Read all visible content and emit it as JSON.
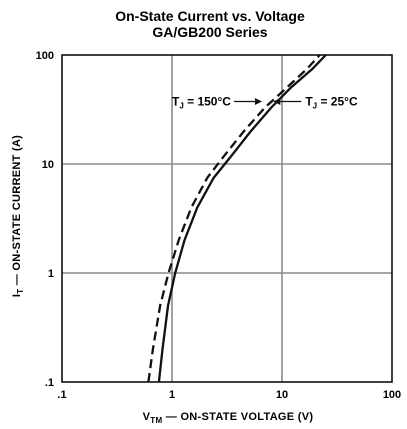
{
  "chart_data": {
    "type": "line",
    "title": "On-State Current vs. Voltage",
    "subtitle": "GA/GB200 Series",
    "xlabel": "V_TM — ON-STATE VOLTAGE (V)",
    "ylabel": "I_T — ON-STATE CURRENT (A)",
    "x_scale": "log",
    "y_scale": "log",
    "xlim": [
      0.1,
      100
    ],
    "ylim": [
      0.1,
      100
    ],
    "x_ticks": [
      ".1",
      "1",
      "10",
      "100"
    ],
    "y_ticks": [
      ".1",
      "1",
      "10",
      "100"
    ],
    "grid": true,
    "series": [
      {
        "name": "T_J = 150°C",
        "style": "dashed",
        "x": [
          0.61,
          0.67,
          0.78,
          0.93,
          1.15,
          1.5,
          2.1,
          3.0,
          4.5,
          7.0,
          11.0,
          17.0,
          22.0
        ],
        "y": [
          0.1,
          0.2,
          0.5,
          1.0,
          2.0,
          4.0,
          7.5,
          12.0,
          20.0,
          33.0,
          50.0,
          75.0,
          100.0
        ]
      },
      {
        "name": "T_J = 25°C",
        "style": "solid",
        "x": [
          0.76,
          0.82,
          0.92,
          1.07,
          1.3,
          1.7,
          2.4,
          3.5,
          5.2,
          8.0,
          12.0,
          19.0,
          25.0
        ],
        "y": [
          0.1,
          0.2,
          0.5,
          1.0,
          2.0,
          4.0,
          7.5,
          12.0,
          20.0,
          33.0,
          50.0,
          75.0,
          100.0
        ]
      }
    ],
    "annotations": [
      {
        "text": "T_J = 150°C",
        "target_series": 0
      },
      {
        "text": "T_J = 25°C",
        "target_series": 1
      }
    ]
  }
}
